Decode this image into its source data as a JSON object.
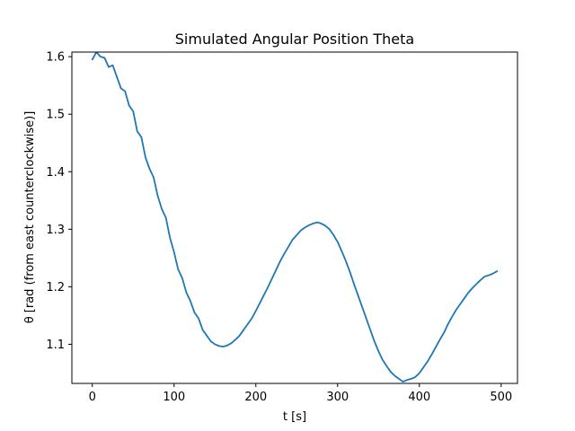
{
  "chart_data": {
    "type": "line",
    "title": "Simulated Angular Position Theta",
    "xlabel": "t [s]",
    "ylabel": "θ [rad (from east counterclockwise)]",
    "xlim": [
      -25,
      520
    ],
    "ylim": [
      1.032,
      1.608
    ],
    "xticks": [
      0,
      100,
      200,
      300,
      400,
      500
    ],
    "yticks": [
      1.1,
      1.2,
      1.3,
      1.4,
      1.5,
      1.6
    ],
    "ytick_labels": [
      "1.1",
      "1.2",
      "1.3",
      "1.4",
      "1.5",
      "1.6"
    ],
    "grid": false,
    "colors": {
      "series": "#1f77b4"
    },
    "series": [
      {
        "x": [
          0,
          5,
          10,
          15,
          20,
          25,
          30,
          35,
          40,
          45,
          50,
          55,
          60,
          65,
          70,
          75,
          80,
          85,
          90,
          95,
          100,
          105,
          110,
          115,
          120,
          125,
          130,
          135,
          140,
          145,
          150,
          155,
          160,
          165,
          170,
          175,
          180,
          185,
          190,
          195,
          200,
          205,
          210,
          215,
          220,
          225,
          230,
          235,
          240,
          245,
          250,
          255,
          260,
          265,
          270,
          275,
          280,
          285,
          290,
          295,
          300,
          305,
          310,
          315,
          320,
          325,
          330,
          335,
          340,
          345,
          350,
          355,
          360,
          365,
          370,
          375,
          380,
          385,
          390,
          395,
          400,
          405,
          410,
          415,
          420,
          425,
          430,
          435,
          440,
          445,
          450,
          455,
          460,
          465,
          470,
          475,
          480,
          485,
          490,
          495
        ],
        "values": [
          1.595,
          1.608,
          1.6,
          1.598,
          1.582,
          1.585,
          1.565,
          1.545,
          1.54,
          1.515,
          1.505,
          1.47,
          1.46,
          1.425,
          1.405,
          1.39,
          1.358,
          1.335,
          1.32,
          1.285,
          1.26,
          1.23,
          1.215,
          1.19,
          1.175,
          1.155,
          1.145,
          1.125,
          1.115,
          1.105,
          1.1,
          1.097,
          1.096,
          1.098,
          1.102,
          1.108,
          1.115,
          1.125,
          1.135,
          1.145,
          1.158,
          1.172,
          1.186,
          1.2,
          1.215,
          1.23,
          1.245,
          1.258,
          1.27,
          1.282,
          1.29,
          1.298,
          1.303,
          1.307,
          1.31,
          1.312,
          1.31,
          1.306,
          1.3,
          1.29,
          1.278,
          1.262,
          1.245,
          1.226,
          1.205,
          1.185,
          1.165,
          1.145,
          1.125,
          1.105,
          1.088,
          1.073,
          1.062,
          1.052,
          1.045,
          1.04,
          1.035,
          1.038,
          1.04,
          1.043,
          1.05,
          1.06,
          1.07,
          1.082,
          1.095,
          1.108,
          1.12,
          1.135,
          1.148,
          1.16,
          1.17,
          1.18,
          1.19,
          1.198,
          1.205,
          1.212,
          1.218,
          1.22,
          1.223,
          1.227
        ]
      }
    ]
  }
}
